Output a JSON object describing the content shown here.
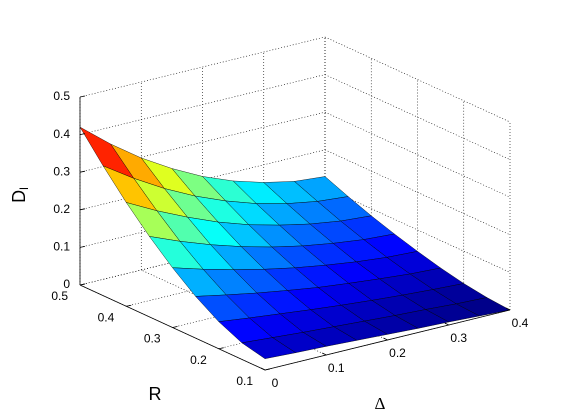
{
  "chart_data": {
    "type": "surface",
    "xlabel": "Δ",
    "ylabel": "R",
    "zlabel": {
      "text": "D",
      "subscript": "l"
    },
    "x": [
      0,
      0.05,
      0.1,
      0.15,
      0.2,
      0.25,
      0.3,
      0.35,
      0.4
    ],
    "y": [
      0.1,
      0.15,
      0.2,
      0.25,
      0.3,
      0.35,
      0.4,
      0.45,
      0.5
    ],
    "z": [
      [
        0.03,
        0.026,
        0.023,
        0.019,
        0.015,
        0.011,
        0.008,
        0.004,
        0
      ],
      [
        0.044,
        0.038,
        0.032,
        0.027,
        0.022,
        0.017,
        0.013,
        0.008,
        0.005
      ],
      [
        0.072,
        0.062,
        0.053,
        0.044,
        0.036,
        0.029,
        0.023,
        0.018,
        0.014
      ],
      [
        0.111,
        0.095,
        0.08,
        0.067,
        0.055,
        0.046,
        0.038,
        0.031,
        0.027
      ],
      [
        0.159,
        0.135,
        0.114,
        0.095,
        0.079,
        0.066,
        0.055,
        0.047,
        0.043
      ],
      [
        0.214,
        0.181,
        0.152,
        0.127,
        0.106,
        0.089,
        0.076,
        0.066,
        0.061
      ],
      [
        0.276,
        0.234,
        0.197,
        0.164,
        0.137,
        0.116,
        0.099,
        0.087,
        0.081
      ],
      [
        0.345,
        0.292,
        0.245,
        0.205,
        0.172,
        0.145,
        0.125,
        0.111,
        0.104
      ],
      [
        0.42,
        0.355,
        0.298,
        0.25,
        0.209,
        0.177,
        0.153,
        0.136,
        0.129
      ]
    ],
    "xlim": [
      0,
      0.4
    ],
    "xticks": [
      0,
      0.1,
      0.2,
      0.3,
      0.4
    ],
    "ylim": [
      0.1,
      0.5
    ],
    "yticks": [
      0.1,
      0.2,
      0.3,
      0.4,
      0.5
    ],
    "zlim": [
      0,
      0.5
    ],
    "zticks": [
      0,
      0.1,
      0.2,
      0.3,
      0.4,
      0.5
    ],
    "colormap": "jet",
    "grid": true
  }
}
